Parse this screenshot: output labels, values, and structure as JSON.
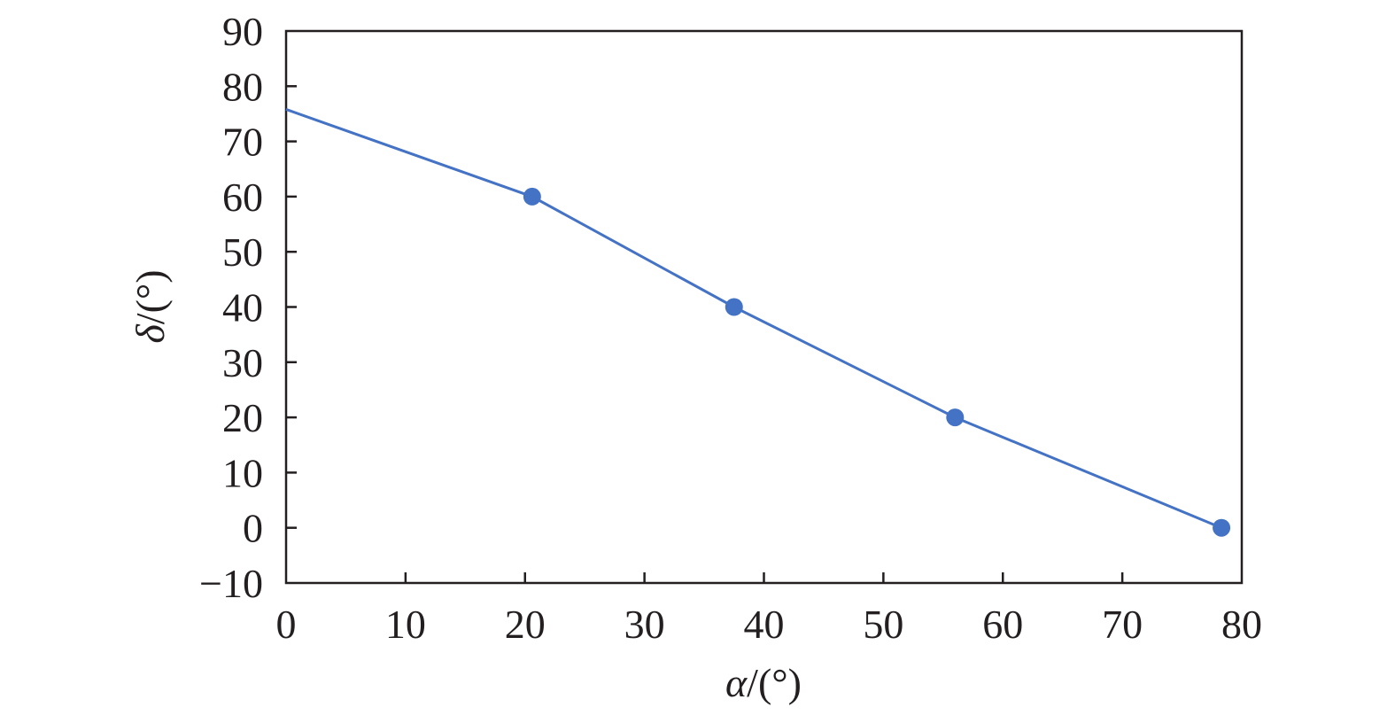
{
  "chart_data": {
    "type": "line",
    "xlabel": {
      "symbol": "α",
      "unit": "/(°)"
    },
    "ylabel": {
      "symbol": "δ",
      "unit": "/(°)"
    },
    "xlim": [
      0,
      80
    ],
    "ylim": [
      -10,
      90
    ],
    "xticks": [
      0,
      10,
      20,
      30,
      40,
      50,
      60,
      70,
      80
    ],
    "yticks": [
      -10,
      0,
      10,
      20,
      30,
      40,
      50,
      60,
      70,
      80,
      90
    ],
    "ytick_labels": [
      "−10",
      "0",
      "10",
      "20",
      "30",
      "40",
      "50",
      "60",
      "70",
      "80",
      "90"
    ],
    "grid": false,
    "legend": "none",
    "series": [
      {
        "color": "#4472c4",
        "line": [
          {
            "x": 0,
            "y": 75.8
          },
          {
            "x": 20.6,
            "y": 60
          },
          {
            "x": 37.5,
            "y": 40
          },
          {
            "x": 56,
            "y": 20
          },
          {
            "x": 78.3,
            "y": 0
          }
        ],
        "markers": [
          {
            "x": 20.6,
            "y": 60
          },
          {
            "x": 37.5,
            "y": 40
          },
          {
            "x": 56,
            "y": 20
          },
          {
            "x": 78.3,
            "y": 0
          }
        ]
      }
    ]
  }
}
